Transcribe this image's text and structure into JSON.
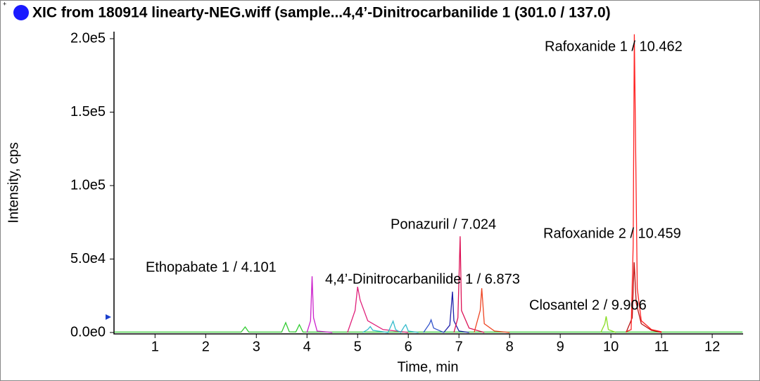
{
  "chart_data": {
    "type": "line",
    "title": "XIC from 180914 linearty-NEG.wiff (sample...4,4’-Dinitrocarbanilide 1 (301.0 / 137.0)",
    "x_label": "Time, min",
    "y_label": "Intensity, cps",
    "xlim": [
      0.19,
      12.61
    ],
    "ylim": [
      0,
      204800
    ],
    "xticks": [
      1,
      2,
      3,
      4,
      5,
      6,
      7,
      8,
      9,
      10,
      11,
      12
    ],
    "yticks": [
      {
        "value": 0,
        "label": "0.0e0"
      },
      {
        "value": 50000,
        "label": "5.0e4"
      },
      {
        "value": 100000,
        "label": "1.0e5"
      },
      {
        "value": 150000,
        "label": "1.5e5"
      },
      {
        "value": 200000,
        "label": "2.0e5"
      }
    ],
    "annotations": [
      "Rafoxanide 1 / 10.462",
      "Ponazuril / 7.024",
      "Rafoxanide 2 / 10.459",
      "Ethopabate 1 / 4.101",
      "4,4’-Dinitrocarbanilide 1 / 6.873",
      "Closantel 2 / 9.906"
    ],
    "series": [
      {
        "color": "#33cc33",
        "x": [
          0.2,
          2.7,
          2.78,
          2.85,
          3.5,
          3.58,
          3.65,
          3.78,
          3.85,
          3.92,
          12.6
        ],
        "values": [
          300,
          300,
          3800,
          300,
          300,
          6700,
          500,
          400,
          5300,
          300,
          300
        ]
      },
      {
        "color": "#cc22cc",
        "x": [
          4.0,
          4.07,
          4.101,
          4.13,
          4.2,
          4.5
        ],
        "values": [
          0,
          8000,
          38300,
          10000,
          1000,
          0
        ]
      },
      {
        "color": "#e0207a",
        "x": [
          4.8,
          4.95,
          5.0,
          5.05,
          5.2,
          5.5,
          6.0
        ],
        "values": [
          0,
          15000,
          31100,
          22000,
          8000,
          2000,
          0
        ]
      },
      {
        "color": "#33bbcc",
        "x": [
          5.1,
          5.2,
          5.25,
          5.3,
          5.6,
          5.7,
          5.75,
          5.85,
          5.92,
          5.95,
          6.0,
          6.2
        ],
        "values": [
          0,
          2000,
          4000,
          1500,
          0,
          7700,
          2000,
          0,
          4000,
          5300,
          1000,
          0
        ]
      },
      {
        "color": "#3355cc",
        "x": [
          6.3,
          6.42,
          6.45,
          6.5,
          6.7
        ],
        "values": [
          0,
          6000,
          8600,
          3000,
          0
        ]
      },
      {
        "color": "#2020aa",
        "x": [
          6.7,
          6.82,
          6.873,
          6.9,
          7.0,
          7.2
        ],
        "values": [
          0,
          5000,
          27800,
          8000,
          1000,
          0
        ]
      },
      {
        "color": "#dd1155",
        "x": [
          6.9,
          6.98,
          7.024,
          7.05,
          7.2,
          7.5
        ],
        "values": [
          0,
          10000,
          65500,
          15000,
          3000,
          0
        ]
      },
      {
        "color": "#ee4422",
        "x": [
          7.3,
          7.42,
          7.45,
          7.5,
          7.7,
          8.0
        ],
        "values": [
          0,
          15000,
          30100,
          6000,
          1000,
          0
        ]
      },
      {
        "color": "#88dd22",
        "x": [
          9.8,
          9.88,
          9.906,
          9.95,
          10.1
        ],
        "values": [
          0,
          6000,
          11000,
          2000,
          0
        ]
      },
      {
        "color": "#bb1111",
        "x": [
          10.3,
          10.42,
          10.459,
          10.5,
          10.6,
          10.8,
          11.0
        ],
        "values": [
          0,
          10000,
          47800,
          20000,
          6000,
          1500,
          0
        ]
      },
      {
        "color": "#ff2222",
        "x": [
          10.3,
          10.4,
          10.44,
          10.462,
          10.48,
          10.52,
          10.6,
          10.8,
          11.0
        ],
        "values": [
          500,
          2000,
          60000,
          203000,
          150000,
          30000,
          8000,
          2000,
          500
        ]
      }
    ]
  }
}
